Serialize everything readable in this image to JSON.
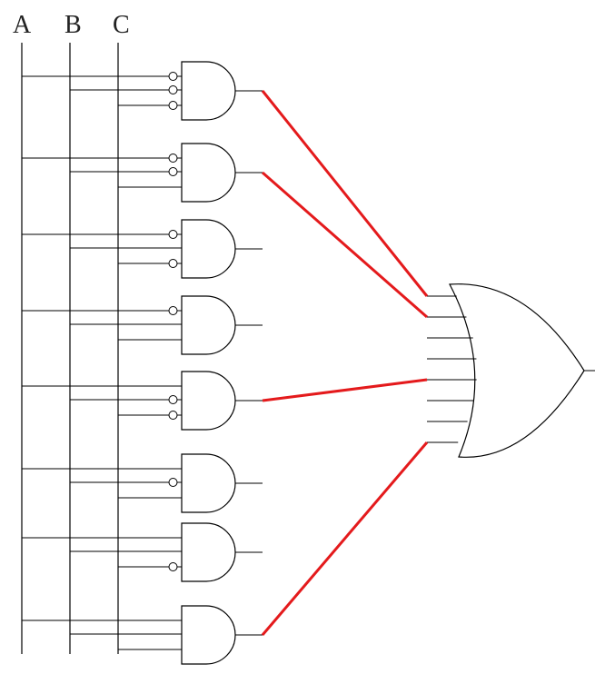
{
  "inputs": [
    {
      "id": "A",
      "label": "A"
    },
    {
      "id": "B",
      "label": "B"
    },
    {
      "id": "C",
      "label": "C"
    }
  ],
  "gates": [
    {
      "name": "and-gate-1",
      "inverted": [
        true,
        true,
        true
      ],
      "output_connected": true
    },
    {
      "name": "and-gate-2",
      "inverted": [
        true,
        true,
        false
      ],
      "output_connected": true
    },
    {
      "name": "and-gate-3",
      "inverted": [
        true,
        false,
        true
      ],
      "output_connected": false
    },
    {
      "name": "and-gate-4",
      "inverted": [
        true,
        false,
        false
      ],
      "output_connected": false
    },
    {
      "name": "and-gate-5",
      "inverted": [
        false,
        true,
        true
      ],
      "output_connected": true
    },
    {
      "name": "and-gate-6",
      "inverted": [
        false,
        true,
        false
      ],
      "output_connected": false
    },
    {
      "name": "and-gate-7",
      "inverted": [
        false,
        false,
        true
      ],
      "output_connected": false
    },
    {
      "name": "and-gate-8",
      "inverted": [
        false,
        false,
        false
      ],
      "output_connected": true
    }
  ],
  "or_gate": {
    "input_count": 8
  },
  "colors": {
    "wire": "#000000",
    "connection": "#e41a1c"
  }
}
